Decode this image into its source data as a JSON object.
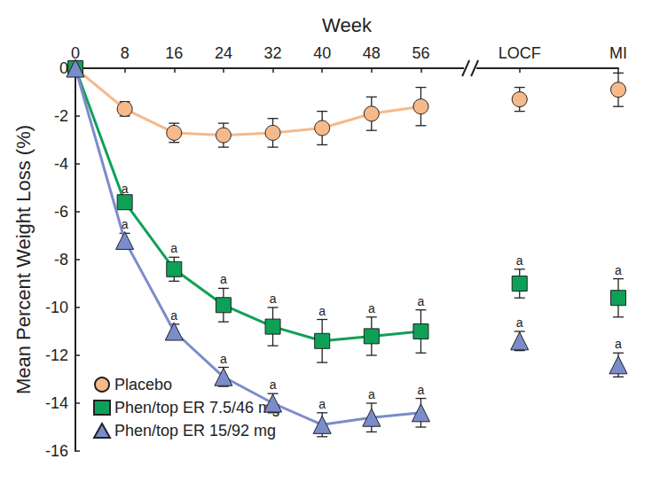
{
  "chart_data": {
    "type": "line",
    "x_label": "Week",
    "y_label": "Mean Percent Weight Loss (%)",
    "categories": [
      "0",
      "8",
      "16",
      "24",
      "32",
      "40",
      "48",
      "56",
      null,
      "LOCF",
      null,
      "MI"
    ],
    "ylim": [
      -16,
      0
    ],
    "yticks": [
      0,
      -2,
      -4,
      -6,
      -8,
      -10,
      -12,
      -14,
      -16
    ],
    "grid": false,
    "legend": "lower left",
    "series": [
      {
        "name": "Placebo",
        "color": "#f6b98a",
        "marker": "circle",
        "values": [
          0,
          -1.7,
          -2.7,
          -2.8,
          -2.7,
          -2.5,
          -1.9,
          -1.6,
          null,
          -1.3,
          null,
          -0.9
        ],
        "errors": [
          0,
          0.3,
          0.4,
          0.5,
          0.6,
          0.7,
          0.7,
          0.8,
          null,
          0.5,
          null,
          0.7
        ]
      },
      {
        "name": "Phen/top ER 7.5/46 mg",
        "color": "#0fa058",
        "marker": "square",
        "values": [
          0,
          -5.6,
          -8.4,
          -9.9,
          -10.8,
          -11.4,
          -11.2,
          -11.0,
          null,
          -9.0,
          null,
          -9.6
        ],
        "errors": [
          0,
          0.2,
          0.5,
          0.7,
          0.8,
          0.9,
          0.8,
          0.9,
          null,
          0.6,
          null,
          0.8
        ],
        "point_labels": [
          null,
          "a",
          "a",
          "a",
          "a",
          "a",
          "a",
          "a",
          null,
          "a",
          null,
          "a"
        ]
      },
      {
        "name": "Phen/top ER 15/92 mg",
        "color": "#7b8ccb",
        "marker": "triangle",
        "values": [
          0,
          -7.2,
          -11.0,
          -12.9,
          -14.0,
          -14.9,
          -14.6,
          -14.4,
          null,
          -11.4,
          null,
          -12.4
        ],
        "errors": [
          0,
          0.3,
          0.3,
          0.4,
          0.4,
          0.5,
          0.6,
          0.6,
          null,
          0.4,
          null,
          0.5
        ],
        "point_labels": [
          null,
          "a",
          "a",
          "a",
          "a",
          "a",
          "a",
          "a",
          null,
          "a",
          null,
          "a"
        ]
      }
    ]
  }
}
